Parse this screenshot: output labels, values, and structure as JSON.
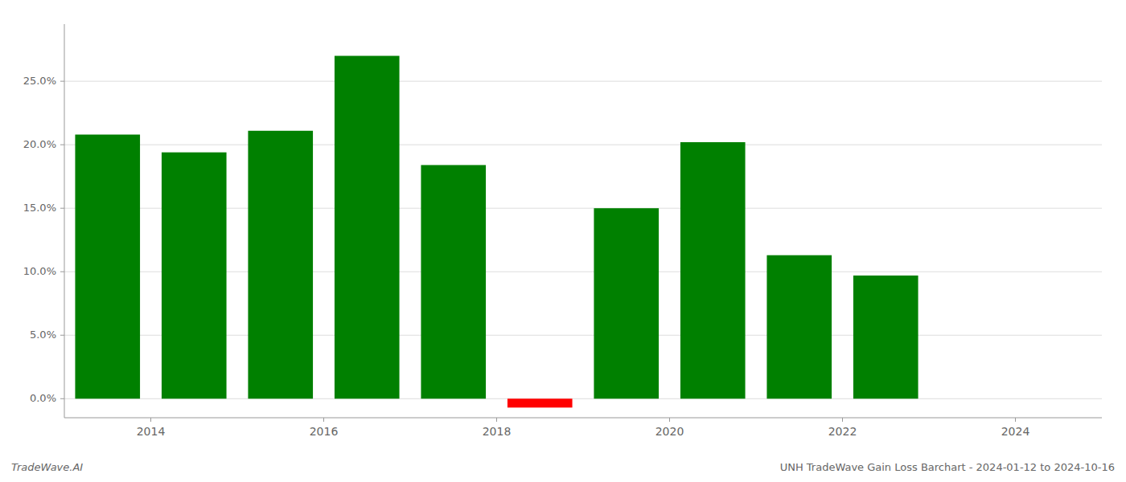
{
  "chart_data": {
    "type": "bar",
    "x": [
      2013.5,
      2014.5,
      2015.5,
      2016.5,
      2017.5,
      2018.5,
      2019.5,
      2020.5,
      2021.5,
      2022.5,
      2023.5
    ],
    "values": [
      0.208,
      0.194,
      0.211,
      0.27,
      0.184,
      -0.007,
      0.15,
      0.202,
      0.113,
      0.097,
      0.0
    ],
    "colors": [
      "#008000",
      "#008000",
      "#008000",
      "#008000",
      "#008000",
      "#ff0000",
      "#008000",
      "#008000",
      "#008000",
      "#008000",
      "#008000"
    ],
    "xlim": [
      2013.0,
      2025.0
    ],
    "xticks": [
      2014,
      2016,
      2018,
      2020,
      2022,
      2024
    ],
    "ylim": [
      -0.015,
      0.295
    ],
    "yticks": [
      {
        "value": 0.0,
        "label": "0.0%"
      },
      {
        "value": 0.05,
        "label": "5.0%"
      },
      {
        "value": 0.1,
        "label": "10.0%"
      },
      {
        "value": 0.15,
        "label": "15.0%"
      },
      {
        "value": 0.2,
        "label": "20.0%"
      },
      {
        "value": 0.25,
        "label": "25.0%"
      }
    ],
    "grid": true,
    "annotations": [
      "TradeWave.AI",
      "UNH TradeWave Gain Loss Barchart - 2024-01-12 to 2024-10-16"
    ]
  }
}
